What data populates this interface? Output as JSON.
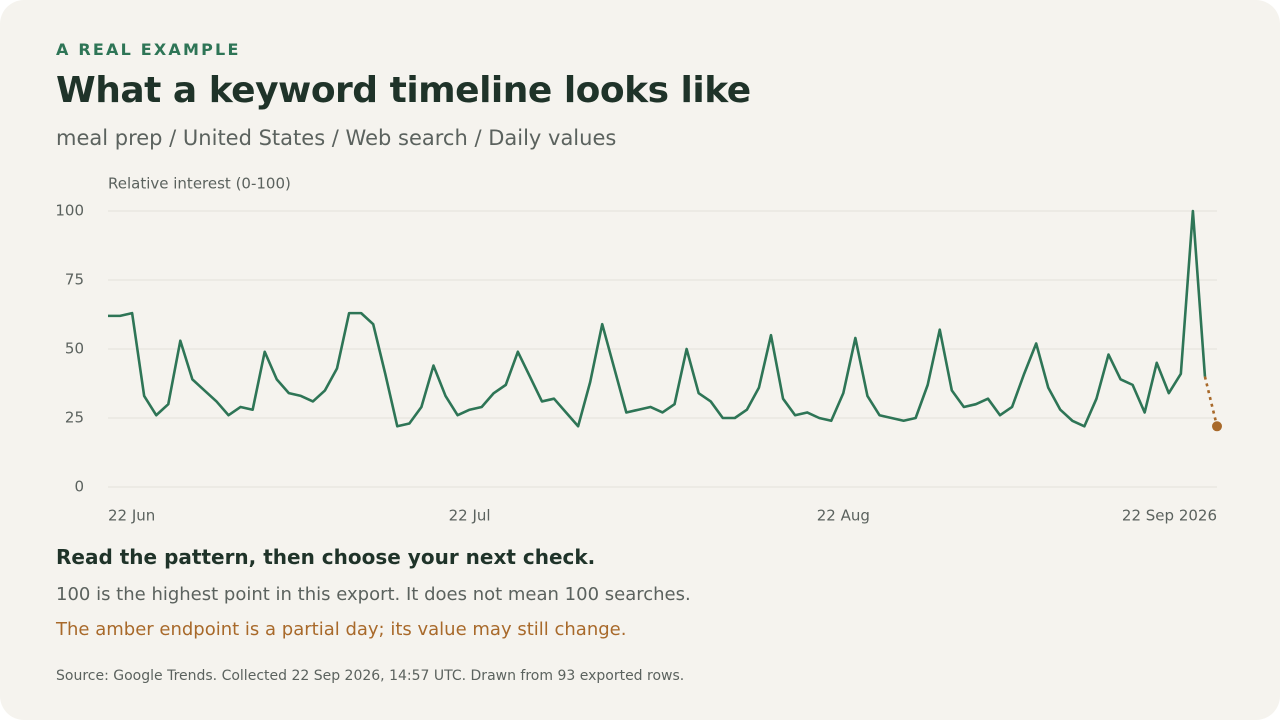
{
  "eyebrow": "A REAL EXAMPLE",
  "chart_data": {
    "type": "line",
    "title": "What a keyword timeline looks like",
    "subtitle": "meal prep / United States / Web search / Daily values",
    "y_label": "Relative interest (0-100)",
    "x": [
      "2026-06-22",
      "2026-06-23",
      "2026-06-24",
      "2026-06-25",
      "2026-06-26",
      "2026-06-27",
      "2026-06-28",
      "2026-06-29",
      "2026-06-30",
      "2026-07-01",
      "2026-07-02",
      "2026-07-03",
      "2026-07-04",
      "2026-07-05",
      "2026-07-06",
      "2026-07-07",
      "2026-07-08",
      "2026-07-09",
      "2026-07-10",
      "2026-07-11",
      "2026-07-12",
      "2026-07-13",
      "2026-07-14",
      "2026-07-15",
      "2026-07-16",
      "2026-07-17",
      "2026-07-18",
      "2026-07-19",
      "2026-07-20",
      "2026-07-21",
      "2026-07-22",
      "2026-07-23",
      "2026-07-24",
      "2026-07-25",
      "2026-07-26",
      "2026-07-27",
      "2026-07-28",
      "2026-07-29",
      "2026-07-30",
      "2026-07-31",
      "2026-08-01",
      "2026-08-02",
      "2026-08-03",
      "2026-08-04",
      "2026-08-05",
      "2026-08-06",
      "2026-08-07",
      "2026-08-08",
      "2026-08-09",
      "2026-08-10",
      "2026-08-11",
      "2026-08-12",
      "2026-08-13",
      "2026-08-14",
      "2026-08-15",
      "2026-08-16",
      "2026-08-17",
      "2026-08-18",
      "2026-08-19",
      "2026-08-20",
      "2026-08-21",
      "2026-08-22",
      "2026-08-23",
      "2026-08-24",
      "2026-08-25",
      "2026-08-26",
      "2026-08-27",
      "2026-08-28",
      "2026-08-29",
      "2026-08-30",
      "2026-08-31",
      "2026-09-01",
      "2026-09-02",
      "2026-09-03",
      "2026-09-04",
      "2026-09-05",
      "2026-09-06",
      "2026-09-07",
      "2026-09-08",
      "2026-09-09",
      "2026-09-10",
      "2026-09-11",
      "2026-09-12",
      "2026-09-13",
      "2026-09-14",
      "2026-09-15",
      "2026-09-16",
      "2026-09-17",
      "2026-09-18",
      "2026-09-19",
      "2026-09-20",
      "2026-09-21",
      "2026-09-22"
    ],
    "series": [
      {
        "color": "#2e7556",
        "partial_color": "#a8692a",
        "partial_last": true,
        "values": [
          62,
          62,
          63,
          33,
          26,
          30,
          53,
          39,
          35,
          31,
          26,
          29,
          28,
          49,
          39,
          34,
          33,
          31,
          35,
          43,
          63,
          63,
          59,
          41,
          22,
          23,
          29,
          44,
          33,
          26,
          28,
          29,
          34,
          37,
          49,
          40,
          31,
          32,
          27,
          22,
          38,
          59,
          43,
          27,
          28,
          29,
          27,
          30,
          50,
          34,
          31,
          25,
          25,
          28,
          36,
          55,
          32,
          26,
          27,
          25,
          24,
          34,
          54,
          33,
          26,
          25,
          24,
          25,
          37,
          57,
          35,
          29,
          30,
          32,
          26,
          29,
          41,
          52,
          36,
          28,
          24,
          22,
          32,
          48,
          39,
          37,
          27,
          45,
          34,
          41,
          100,
          40,
          22
        ]
      }
    ],
    "xlim": [
      "2026-06-22",
      "2026-09-22"
    ],
    "xticks": [
      {
        "value": "2026-06-22",
        "label": "22 Jun"
      },
      {
        "value": "2026-07-22",
        "label": "22 Jul"
      },
      {
        "value": "2026-08-22",
        "label": "22 Aug"
      },
      {
        "value": "2026-09-22",
        "label": "22 Sep 2026"
      }
    ],
    "ylim": [
      0,
      100
    ],
    "yticks": [
      0,
      25,
      50,
      75,
      100
    ],
    "grid": true
  },
  "takeaway": {
    "heading": "Read the pattern, then choose your next check.",
    "note": "100 is the highest point in this export. It does not mean 100 searches.",
    "partial_note": "The amber endpoint is a partial day; its value may still change."
  },
  "source": "Source: Google Trends. Collected 22 Sep 2026, 14:57 UTC. Drawn from 93 exported rows."
}
